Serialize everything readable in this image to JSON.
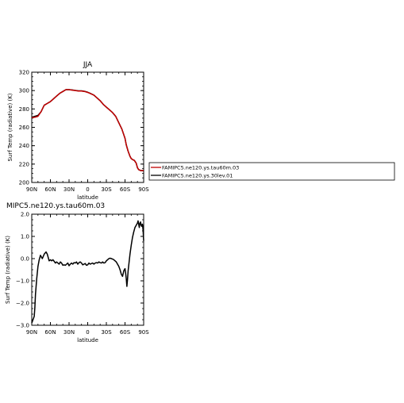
{
  "colors": {
    "series_a": "#c00000",
    "series_b": "#000000",
    "axis": "#000000"
  },
  "legend": {
    "entries": [
      {
        "label": "FAMIPC5.ne120.ys.tau60m.03",
        "color": "#c00000"
      },
      {
        "label": "FAMIPC5.ne120.ys.30lev.01",
        "color": "#000000"
      }
    ]
  },
  "chart_data": [
    {
      "type": "line",
      "title": "JJA",
      "xlabel": "latitude",
      "ylabel": "Surf Temp (radiative) (K)",
      "xlim": [
        -90,
        90
      ],
      "ylim": [
        200,
        320
      ],
      "xticks": [
        -90,
        -60,
        -30,
        0,
        30,
        60,
        90
      ],
      "xtick_labels": [
        "90N",
        "60N",
        "30N",
        "0",
        "30S",
        "60S",
        "90S"
      ],
      "yticks": [
        200,
        220,
        240,
        260,
        280,
        300,
        320
      ],
      "ytick_labels": [
        "200",
        "220",
        "240",
        "260",
        "280",
        "300",
        "320"
      ],
      "series": [
        {
          "name": "FAMIPC5.ne120.ys.tau60m.03",
          "color": "#c00000",
          "x": [
            -90,
            -85,
            -80,
            -75,
            -70,
            -65,
            -60,
            -55,
            -50,
            -45,
            -40,
            -35,
            -30,
            -25,
            -20,
            -15,
            -10,
            -5,
            0,
            5,
            10,
            15,
            20,
            25,
            30,
            35,
            40,
            45,
            50,
            55,
            60,
            62,
            65,
            68,
            70,
            72,
            75,
            78,
            80,
            82,
            85,
            88,
            90
          ],
          "y": [
            270.5,
            271,
            272,
            277,
            284,
            286,
            288,
            291,
            294,
            297,
            299,
            301,
            301,
            300.5,
            300,
            299.5,
            299.5,
            299,
            298,
            296.5,
            295,
            292,
            289,
            285,
            282,
            279,
            276,
            272,
            265,
            258,
            248,
            241,
            234,
            228.5,
            226,
            225,
            224,
            221,
            216,
            214,
            213,
            213,
            213
          ]
        },
        {
          "name": "FAMIPC5.ne120.ys.30lev.01",
          "color": "#000000",
          "x": [
            -90,
            -85,
            -80,
            -75,
            -70,
            -65,
            -60,
            -55,
            -50,
            -45,
            -40,
            -35,
            -30,
            -25,
            -20,
            -15,
            -10,
            -5,
            0,
            5,
            10,
            15,
            20,
            25,
            30,
            35,
            40,
            45,
            50,
            55,
            60,
            62,
            65,
            68,
            70,
            72,
            75,
            78,
            80,
            82,
            85,
            88,
            90
          ],
          "y": [
            271,
            272,
            273,
            277,
            284,
            286,
            288,
            291,
            294,
            297,
            299,
            301,
            301,
            300.7,
            300.2,
            299.7,
            299.7,
            299.2,
            298.2,
            296.7,
            295,
            292,
            289,
            285,
            282,
            279,
            276,
            272,
            265,
            258,
            248,
            241,
            234,
            228.5,
            226,
            225,
            224,
            221,
            216,
            214,
            213,
            213,
            212.5
          ]
        }
      ]
    },
    {
      "type": "line",
      "title": "MIPC5.ne120.ys.tau60m.03",
      "xlabel": "latitude",
      "ylabel": "Surf Temp (radiative) (K)",
      "xlim": [
        -90,
        90
      ],
      "ylim": [
        -3,
        2
      ],
      "xticks": [
        -90,
        -60,
        -30,
        0,
        30,
        60,
        90
      ],
      "xtick_labels": [
        "90N",
        "60N",
        "30N",
        "0",
        "30S",
        "60S",
        "90S"
      ],
      "yticks": [
        -3,
        -2,
        -1,
        0,
        1,
        2
      ],
      "ytick_labels": [
        "−3.0",
        "−2.0",
        "−1.0",
        "0.0",
        "1.0",
        "2.0"
      ],
      "series": [
        {
          "color": "#000000",
          "x": [
            -90,
            -88,
            -86,
            -85,
            -84,
            -82,
            -80,
            -78,
            -76,
            -75,
            -73,
            -70,
            -67,
            -65,
            -62,
            -60,
            -58,
            -56,
            -54,
            -52,
            -50,
            -48,
            -46,
            -44,
            -42,
            -40,
            -38,
            -36,
            -34,
            -32,
            -30,
            -28,
            -26,
            -24,
            -22,
            -20,
            -18,
            -16,
            -14,
            -12,
            -10,
            -8,
            -6,
            -4,
            -2,
            0,
            2,
            4,
            6,
            8,
            10,
            12,
            14,
            16,
            18,
            20,
            22,
            24,
            26,
            28,
            30,
            32,
            34,
            36,
            38,
            40,
            42,
            44,
            46,
            48,
            50,
            52,
            54,
            56,
            58,
            60,
            61,
            62,
            63,
            64,
            65,
            66,
            68,
            70,
            72,
            74,
            76,
            78,
            80,
            81,
            82,
            83,
            84,
            85,
            86,
            87,
            88,
            89,
            90
          ],
          "y": [
            -2.9,
            -2.75,
            -2.6,
            -2.2,
            -1.6,
            -0.9,
            -0.35,
            -0.05,
            0.15,
            0.1,
            0.0,
            0.2,
            0.3,
            0.2,
            -0.1,
            -0.05,
            -0.1,
            -0.05,
            -0.12,
            -0.2,
            -0.15,
            -0.2,
            -0.25,
            -0.15,
            -0.2,
            -0.3,
            -0.28,
            -0.3,
            -0.25,
            -0.2,
            -0.32,
            -0.25,
            -0.2,
            -0.25,
            -0.18,
            -0.2,
            -0.15,
            -0.25,
            -0.18,
            -0.15,
            -0.2,
            -0.28,
            -0.25,
            -0.22,
            -0.3,
            -0.28,
            -0.2,
            -0.25,
            -0.22,
            -0.2,
            -0.25,
            -0.2,
            -0.18,
            -0.2,
            -0.15,
            -0.18,
            -0.2,
            -0.15,
            -0.2,
            -0.18,
            -0.1,
            -0.05,
            0.0,
            0.02,
            0.0,
            -0.02,
            -0.05,
            -0.1,
            -0.15,
            -0.25,
            -0.35,
            -0.5,
            -0.7,
            -0.8,
            -0.55,
            -0.45,
            -0.65,
            -0.9,
            -1.25,
            -0.95,
            -0.55,
            -0.3,
            0.2,
            0.6,
            0.95,
            1.2,
            1.4,
            1.5,
            1.6,
            1.7,
            1.55,
            1.4,
            1.6,
            1.65,
            1.5,
            1.45,
            1.55,
            1.3,
            0.8
          ]
        }
      ]
    }
  ]
}
